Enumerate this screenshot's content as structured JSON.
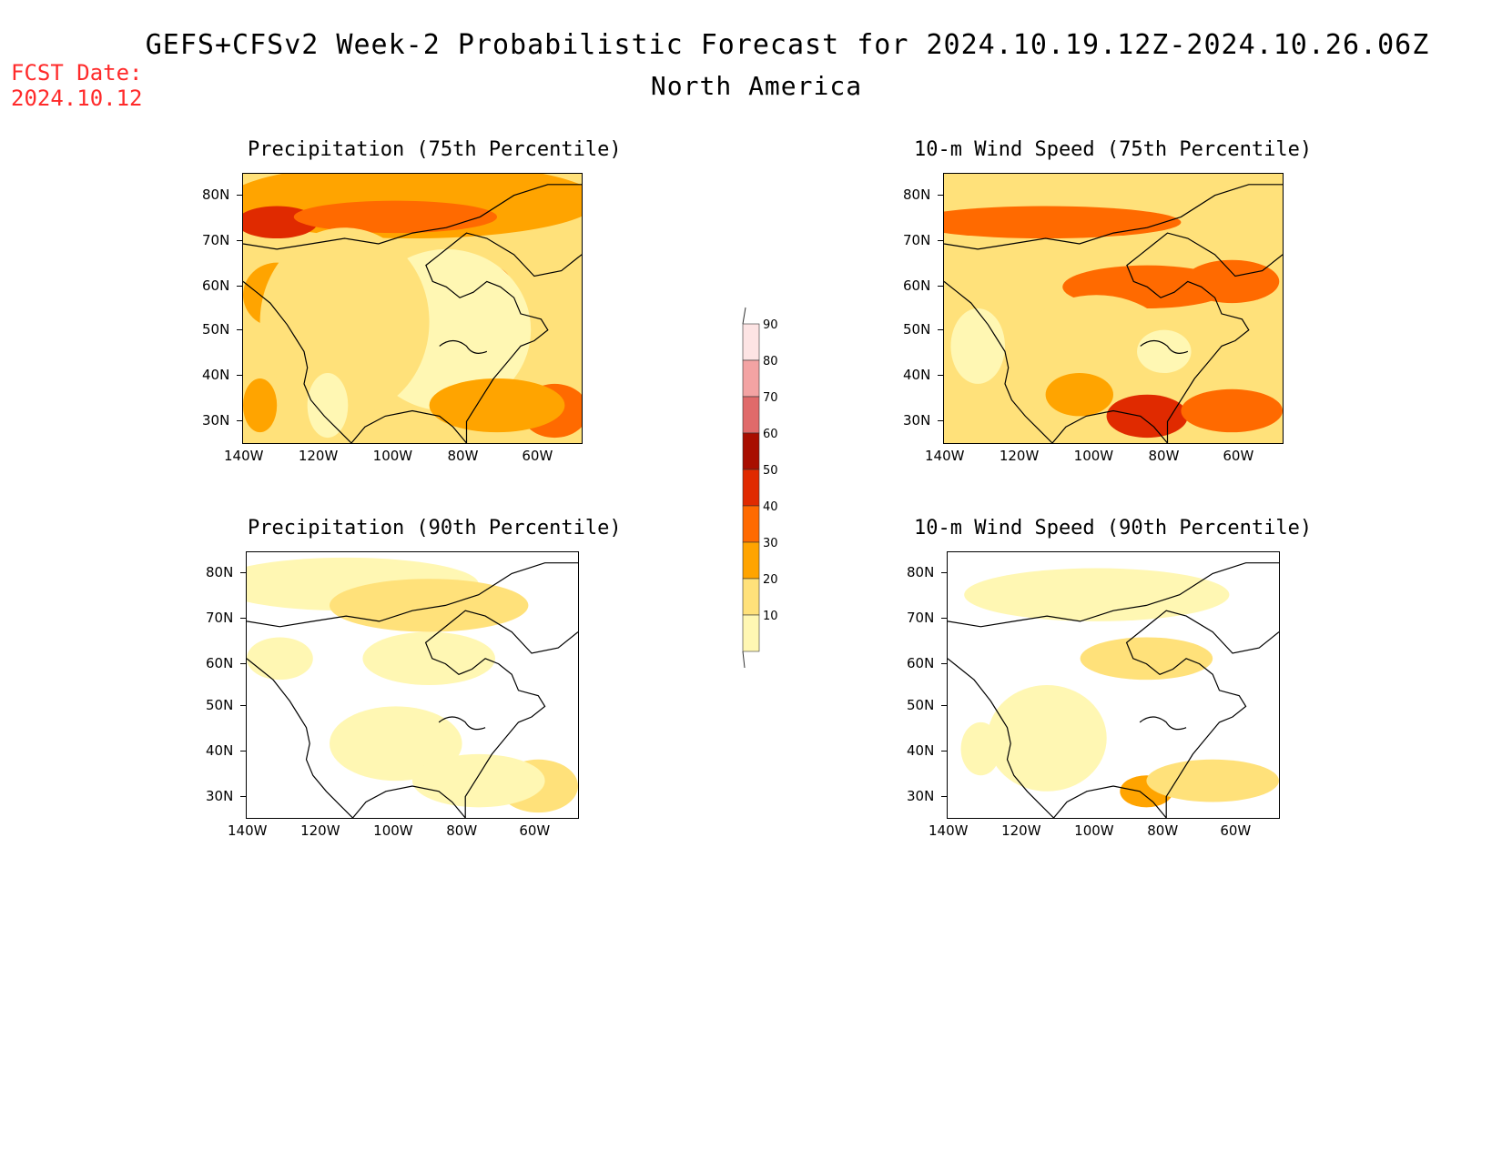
{
  "fcst_label": "FCST Date:",
  "fcst_date": "2024.10.12",
  "title": "GEFS+CFSv2 Week-2 Probabilistic Forecast for 2024.10.19.12Z-2024.10.26.06Z",
  "region": "North America",
  "panels": [
    {
      "title": "Precipitation (75th Percentile)"
    },
    {
      "title": "10-m Wind Speed (75th Percentile)"
    },
    {
      "title": "Precipitation (90th Percentile)"
    },
    {
      "title": "10-m Wind Speed (90th Percentile)"
    }
  ],
  "lat_labels": [
    "80N",
    "70N",
    "60N",
    "50N",
    "40N",
    "30N"
  ],
  "lon_labels": [
    "140W",
    "120W",
    "100W",
    "80W",
    "60W"
  ],
  "colorbar": {
    "levels": [
      "90",
      "80",
      "70",
      "60",
      "50",
      "40",
      "30",
      "20",
      "10"
    ],
    "colors": [
      "#fde4e4",
      "#f3a3a3",
      "#e06a6a",
      "#a80e00",
      "#e02a00",
      "#ff6a00",
      "#ffa400",
      "#ffe17a",
      "#fff7b3"
    ]
  },
  "palette": {
    "c10": "#fff7b3",
    "c20": "#ffe17a",
    "c30": "#ffa400",
    "c40": "#ff6a00",
    "c50": "#e02a00",
    "c60": "#a80e00",
    "fcst_red": "#ff2a2a"
  }
}
